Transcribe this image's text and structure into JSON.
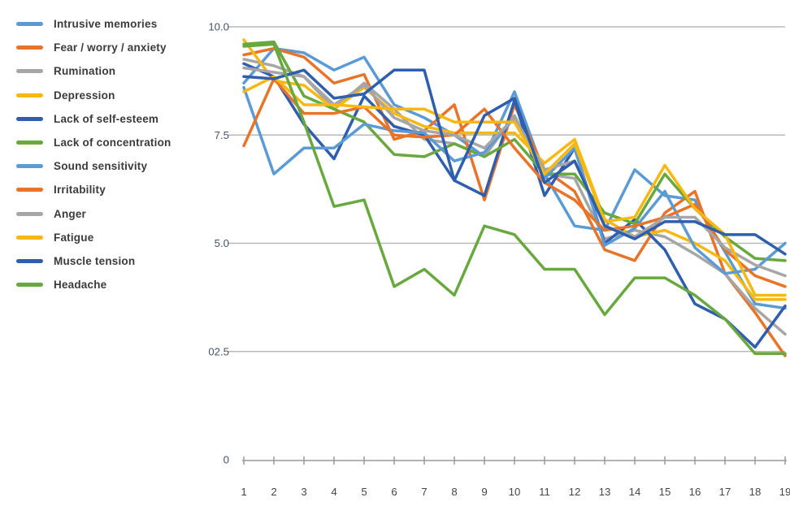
{
  "chart_data": {
    "type": "line",
    "title": "",
    "xlabel": "",
    "ylabel": "",
    "legend_position": "top-left",
    "grid": "horizontal",
    "ylim": [
      0,
      10.4
    ],
    "x": [
      1,
      2,
      3,
      4,
      5,
      6,
      7,
      8,
      9,
      10,
      11,
      12,
      13,
      14,
      15,
      16,
      17,
      18,
      19
    ],
    "x_tick_labels": [
      "1",
      "2",
      "3",
      "4",
      "5",
      "6",
      "7",
      "8",
      "9",
      "10",
      "11",
      "12",
      "13",
      "14",
      "15",
      "16",
      "17",
      "18",
      "19"
    ],
    "y_ticks": [
      {
        "value": 10.0,
        "label": "10.0"
      },
      {
        "value": 7.5,
        "label": "7.5"
      },
      {
        "value": 5.0,
        "label": "5.0"
      },
      {
        "value": 2.5,
        "label": "02.5"
      },
      {
        "value": 0,
        "label": "0"
      }
    ],
    "series": [
      {
        "name": "Intrusive memories",
        "color": "#5B9BD5",
        "values": [
          8.7,
          9.5,
          9.4,
          9.0,
          9.3,
          8.2,
          7.9,
          7.5,
          7.0,
          8.5,
          6.6,
          5.4,
          5.3,
          6.7,
          6.1,
          6.0,
          4.8,
          3.6,
          3.5
        ]
      },
      {
        "name": "Fear / worry / anxiety",
        "color": "#E8742A",
        "values": [
          9.35,
          9.5,
          9.3,
          8.7,
          8.9,
          7.4,
          7.6,
          8.2,
          6.0,
          8.2,
          6.7,
          6.2,
          4.85,
          4.6,
          5.7,
          6.2,
          4.3,
          3.4,
          2.4
        ]
      },
      {
        "name": "Rumination",
        "color": "#A6A6A6",
        "values": [
          9.25,
          9.1,
          8.85,
          8.1,
          8.7,
          8.1,
          7.4,
          7.3,
          7.0,
          7.95,
          6.6,
          6.5,
          5.1,
          5.3,
          5.15,
          4.75,
          4.3,
          3.5,
          2.9
        ]
      },
      {
        "name": "Depression",
        "color": "#F7B811",
        "values": [
          9.7,
          8.75,
          8.65,
          8.1,
          8.6,
          8.0,
          7.7,
          7.55,
          7.55,
          7.55,
          6.85,
          7.4,
          5.55,
          5.15,
          5.3,
          5.0,
          4.6,
          3.7,
          3.7
        ]
      },
      {
        "name": "Lack of self-esteem",
        "color": "#2F5EAC",
        "values": [
          9.15,
          8.85,
          7.75,
          6.95,
          8.4,
          7.7,
          7.5,
          6.45,
          6.1,
          8.3,
          6.1,
          7.2,
          5.0,
          5.55,
          4.85,
          3.6,
          3.25,
          2.6,
          3.55
        ]
      },
      {
        "name": "Lack of concentration",
        "color": "#68A83E",
        "values": [
          9.6,
          9.65,
          8.4,
          8.1,
          7.8,
          7.05,
          7.0,
          7.3,
          7.0,
          7.4,
          6.6,
          6.6,
          5.7,
          5.45,
          6.6,
          5.8,
          5.15,
          4.65,
          4.6
        ]
      },
      {
        "name": "Sound sensitivity",
        "color": "#5B9BD5",
        "values": [
          8.6,
          6.6,
          7.2,
          7.2,
          7.75,
          7.6,
          7.55,
          6.9,
          7.1,
          7.9,
          6.5,
          7.2,
          4.95,
          5.35,
          6.2,
          4.9,
          4.3,
          4.4,
          5.0
        ]
      },
      {
        "name": "Irritability",
        "color": "#E8742A",
        "values": [
          7.25,
          8.8,
          8.0,
          8.0,
          8.15,
          7.5,
          7.45,
          7.5,
          8.1,
          7.2,
          6.4,
          6.0,
          5.3,
          5.4,
          5.6,
          5.9,
          4.85,
          4.25,
          4.0
        ]
      },
      {
        "name": "Anger",
        "color": "#A6A6A6",
        "values": [
          9.05,
          8.95,
          8.85,
          8.2,
          8.65,
          7.9,
          7.6,
          7.5,
          7.2,
          7.9,
          6.7,
          6.9,
          5.4,
          5.15,
          5.6,
          5.6,
          4.9,
          4.5,
          4.25
        ]
      },
      {
        "name": "Fatigue",
        "color": "#F7B811",
        "values": [
          8.5,
          8.85,
          8.2,
          8.2,
          8.15,
          8.1,
          8.1,
          7.8,
          7.8,
          7.8,
          6.6,
          7.3,
          5.5,
          5.6,
          6.8,
          5.8,
          5.2,
          3.8,
          3.8
        ]
      },
      {
        "name": "Muscle tension",
        "color": "#2F5EAC",
        "values": [
          8.85,
          8.8,
          9.0,
          8.35,
          8.45,
          9.0,
          9.0,
          6.45,
          7.95,
          8.35,
          6.4,
          6.9,
          5.4,
          5.1,
          5.5,
          5.5,
          5.2,
          5.2,
          4.75
        ]
      },
      {
        "name": "Headache",
        "color": "#68A83E",
        "values": [
          9.55,
          9.6,
          7.8,
          5.85,
          6.0,
          4.0,
          4.4,
          3.8,
          5.4,
          5.2,
          4.4,
          4.4,
          3.35,
          4.2,
          4.2,
          3.8,
          3.25,
          2.45,
          2.45
        ]
      }
    ],
    "style_colors": {
      "gridline": "#b9b9b9",
      "axis_line": "#9a9a9a",
      "y_label_color": "#44546A",
      "x_label_color": "#454545"
    }
  }
}
